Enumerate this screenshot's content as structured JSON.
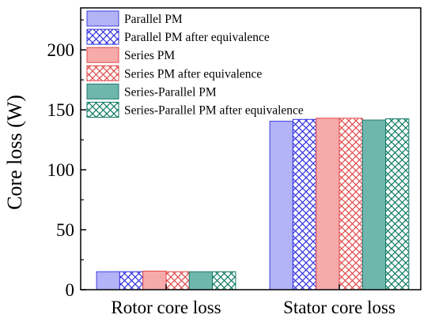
{
  "chart_data": {
    "type": "bar",
    "categories": [
      "Rotor core loss",
      "Stator core loss"
    ],
    "ylabel": "Core loss (W)",
    "xlabel": "",
    "ylim": [
      0,
      235
    ],
    "yticks": [
      0,
      50,
      100,
      150,
      200
    ],
    "legend_position": "top-left",
    "series": [
      {
        "name": "Parallel PM",
        "values": [
          15.0,
          140.5
        ],
        "fill": "#b3b3f7",
        "pattern": "solid",
        "stroke": "#3d3de0"
      },
      {
        "name": "Parallel PM after equivalence",
        "values": [
          15.0,
          142.0
        ],
        "fill": "#ffffff",
        "pattern": "crosshatch",
        "stroke": "#3030e0"
      },
      {
        "name": "Series PM",
        "values": [
          15.5,
          143.0
        ],
        "fill": "#f7aaaa",
        "pattern": "solid",
        "stroke": "#e24a4a"
      },
      {
        "name": "Series PM after equivalence",
        "values": [
          15.0,
          143.0
        ],
        "fill": "#ffffff",
        "pattern": "crosshatch",
        "stroke": "#e24a4a"
      },
      {
        "name": "Series-Parallel PM",
        "values": [
          15.0,
          141.5
        ],
        "fill": "#6fb7ad",
        "pattern": "solid",
        "stroke": "#1f7a6e"
      },
      {
        "name": "Series-Parallel PM after equivalence",
        "values": [
          15.0,
          142.5
        ],
        "fill": "#ffffff",
        "pattern": "crosshatch",
        "stroke": "#0e7a63"
      }
    ]
  }
}
